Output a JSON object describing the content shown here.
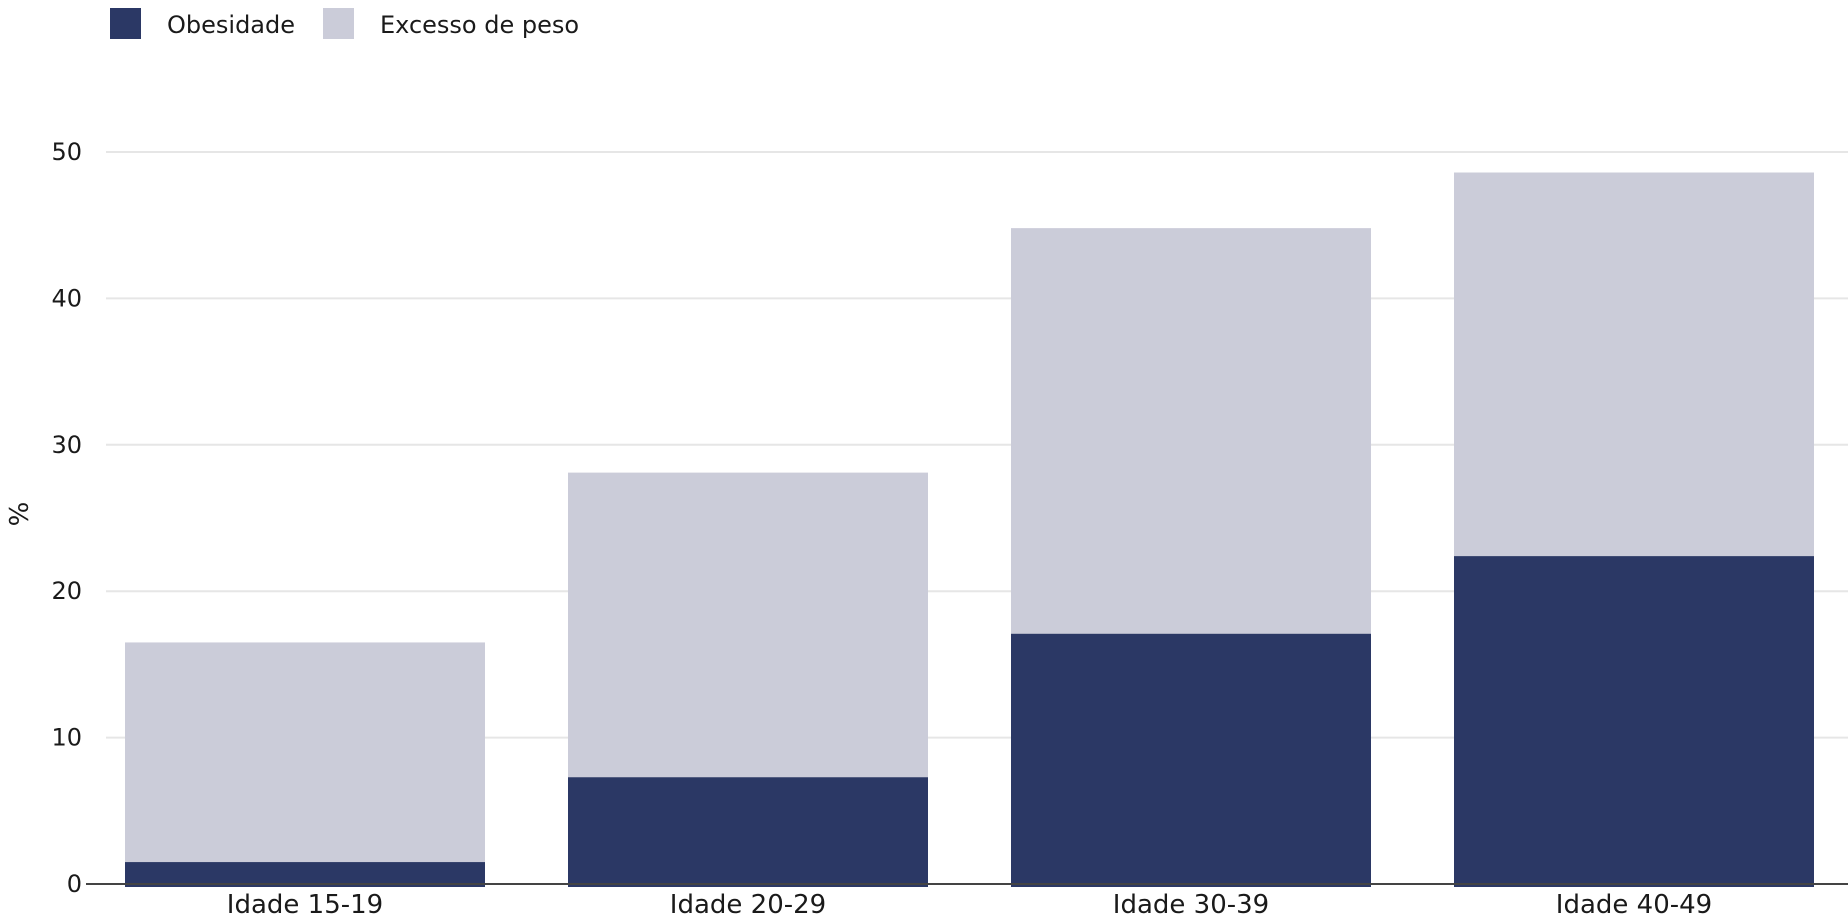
{
  "chart_data": {
    "type": "bar",
    "stacked": true,
    "categories": [
      "Idade 15-19",
      "Idade 20-29",
      "Idade 30-39",
      "Idade 40-49"
    ],
    "series": [
      {
        "name": "Obesidade",
        "values": [
          1.5,
          7.3,
          17.1,
          22.4
        ],
        "color": "#2b3865"
      },
      {
        "name": "Excesso de peso",
        "values": [
          15.0,
          20.8,
          27.7,
          26.2
        ],
        "color": "#cbccd9"
      }
    ],
    "xlabel": "",
    "ylabel": "%",
    "ylim": [
      0,
      50
    ],
    "yticks": [
      0,
      10,
      20,
      30,
      40,
      50
    ],
    "grid": true,
    "legend_position": "top-left"
  }
}
